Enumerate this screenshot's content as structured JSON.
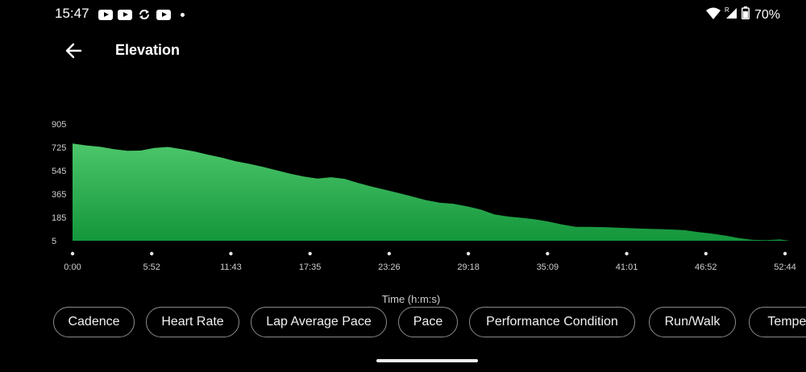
{
  "status_bar": {
    "time": "15:47",
    "notification_icons": [
      "youtube-icon",
      "youtube-icon",
      "sync-icon",
      "youtube-icon",
      "more-notifications-dot"
    ],
    "system_icons": [
      "wifi-icon",
      "signal-roaming-icon",
      "battery-icon"
    ],
    "roaming_label": "R",
    "battery": "70%"
  },
  "header": {
    "back_icon": "arrow-left-icon",
    "title": "Elevation"
  },
  "colors": {
    "background": "#000000",
    "area_top": "#4cc66a",
    "area_bottom": "#14963c",
    "axis_text": "#cfcfcf"
  },
  "chart_data": {
    "type": "area",
    "title": "",
    "xlabel": "Time (h:m:s)",
    "ylabel": "",
    "y_ticks": [
      "905",
      "725",
      "545",
      "365",
      "185",
      "5"
    ],
    "ylim": [
      5,
      905
    ],
    "x_ticks": [
      "0:00",
      "5:52",
      "11:43",
      "17:35",
      "23:26",
      "29:18",
      "35:09",
      "41:01",
      "46:52",
      "52:44"
    ],
    "x": [
      0,
      1,
      2,
      3,
      4,
      5,
      6,
      7,
      8,
      9,
      10,
      11,
      12,
      13,
      14,
      15,
      16,
      17,
      18,
      19,
      20,
      21,
      22,
      23,
      24,
      25,
      26,
      27,
      28,
      29,
      30,
      31,
      32,
      33,
      34,
      35,
      36,
      37,
      38,
      39,
      40,
      41,
      42,
      43,
      44,
      45,
      46,
      47,
      48,
      49,
      50,
      51,
      52,
      52.73
    ],
    "y": [
      755,
      740,
      730,
      712,
      698,
      700,
      720,
      728,
      712,
      692,
      668,
      645,
      618,
      598,
      575,
      548,
      522,
      500,
      485,
      495,
      482,
      450,
      422,
      398,
      372,
      345,
      318,
      298,
      290,
      270,
      245,
      208,
      192,
      182,
      170,
      152,
      130,
      112,
      112,
      110,
      106,
      102,
      98,
      95,
      92,
      86,
      72,
      60,
      45,
      25,
      12,
      10,
      15,
      5
    ]
  },
  "chips": [
    "Cadence",
    "Heart Rate",
    "Lap Average Pace",
    "Pace",
    "Performance Condition",
    "Run/Walk",
    "Temper"
  ]
}
